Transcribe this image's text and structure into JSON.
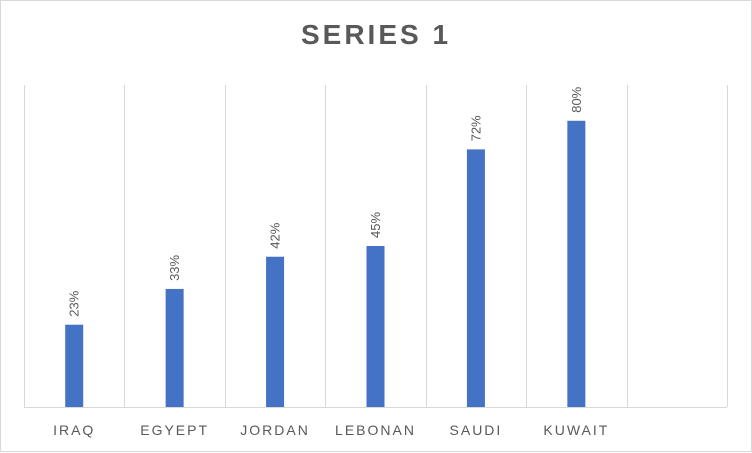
{
  "chart_data": {
    "type": "bar",
    "title": "SERIES 1",
    "categories": [
      "IRAQ",
      "EGYEPT",
      "JORDAN",
      "LEBONAN",
      "SAUDI",
      "KUWAIT",
      ""
    ],
    "series": [
      {
        "values": [
          23,
          33,
          42,
          45,
          72,
          80,
          null
        ],
        "data_labels": [
          "23%",
          "33%",
          "42%",
          "45%",
          "72%",
          "80%",
          ""
        ]
      }
    ],
    "value_format": "percent",
    "ylim": [
      0,
      90
    ],
    "grid": "vertical",
    "legend": "none",
    "colors": {
      "bar": "#4472c4",
      "gridline": "#d9d9d9",
      "text": "#595959"
    }
  }
}
